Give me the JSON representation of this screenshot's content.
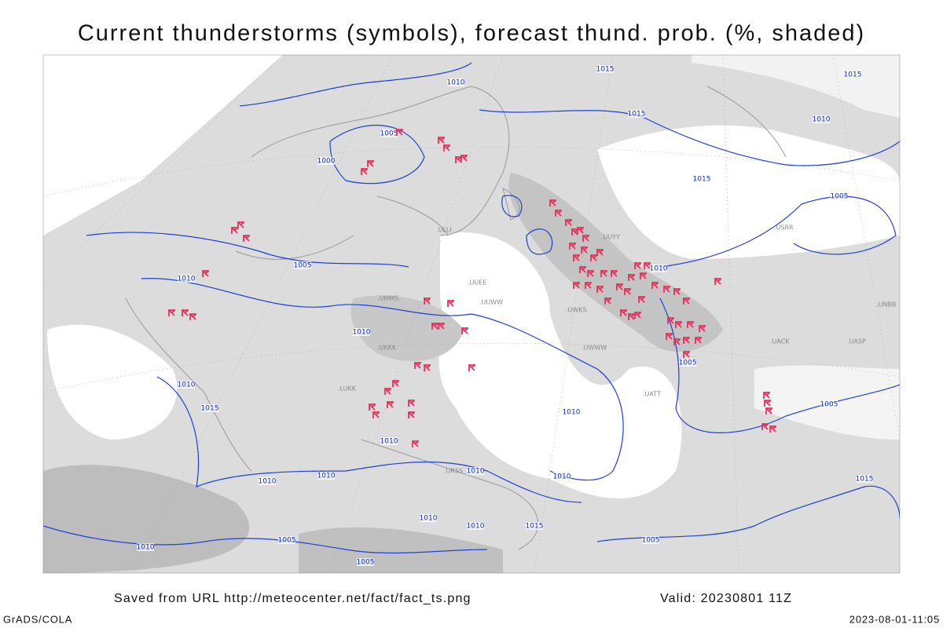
{
  "title": "Current thunderstorms (symbols), forecast thund. prob. (%, shaded)",
  "footer": {
    "source": "Saved from URL http://meteocenter.net/fact/fact_ts.png",
    "valid": "Valid: 20230801 11Z",
    "software": "GrADS/COLA",
    "timestamp": "2023-08-01-11:05"
  },
  "isobar_labels": [
    "1010",
    "1015",
    "1015",
    "1005",
    "1000",
    "1015",
    "1010",
    "1015",
    "1005",
    "1010",
    "1005",
    "1010",
    "1010",
    "1005",
    "1010",
    "1015",
    "1010",
    "1005",
    "1010",
    "1010",
    "1010",
    "1010",
    "1010",
    "1010",
    "1010",
    "1015",
    "1005",
    "1010",
    "1005",
    "1005",
    "1015"
  ],
  "stations": [
    ".UUEE",
    ".UUWW",
    ".UWKS",
    ".UWWW",
    ".UACK",
    ".UASP",
    ".UNBB",
    ".ULLI",
    ".USRR",
    ".UUYY",
    ".UMMS",
    ".UKKK",
    ".LUKK",
    ".URSS",
    ".UATT"
  ]
}
